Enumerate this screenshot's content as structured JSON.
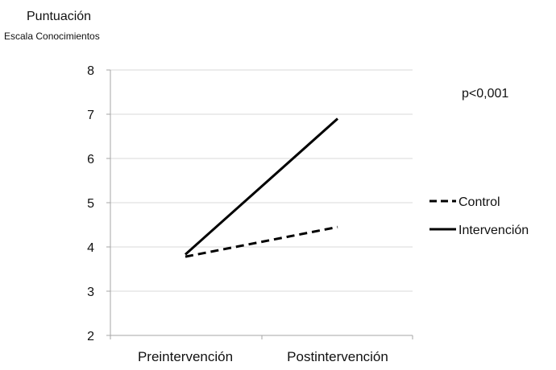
{
  "chart_data": {
    "type": "line",
    "title": "",
    "ylabel": "Puntuación",
    "ylabel_sub": "Escala Conocimientos",
    "xlabel": "",
    "categories": [
      "Preintervención",
      "Postintervención"
    ],
    "ylim": [
      2,
      8
    ],
    "yticks": [
      2,
      3,
      4,
      5,
      6,
      7,
      8
    ],
    "grid": "horizontal",
    "legend": "right",
    "series": [
      {
        "name": "Control",
        "values": [
          3.78,
          4.45
        ],
        "line_style": "dashed",
        "color": "#000000"
      },
      {
        "name": "Intervención",
        "values": [
          3.83,
          6.9
        ],
        "line_style": "solid",
        "color": "#000000"
      }
    ],
    "annotation": "p<0,001"
  }
}
